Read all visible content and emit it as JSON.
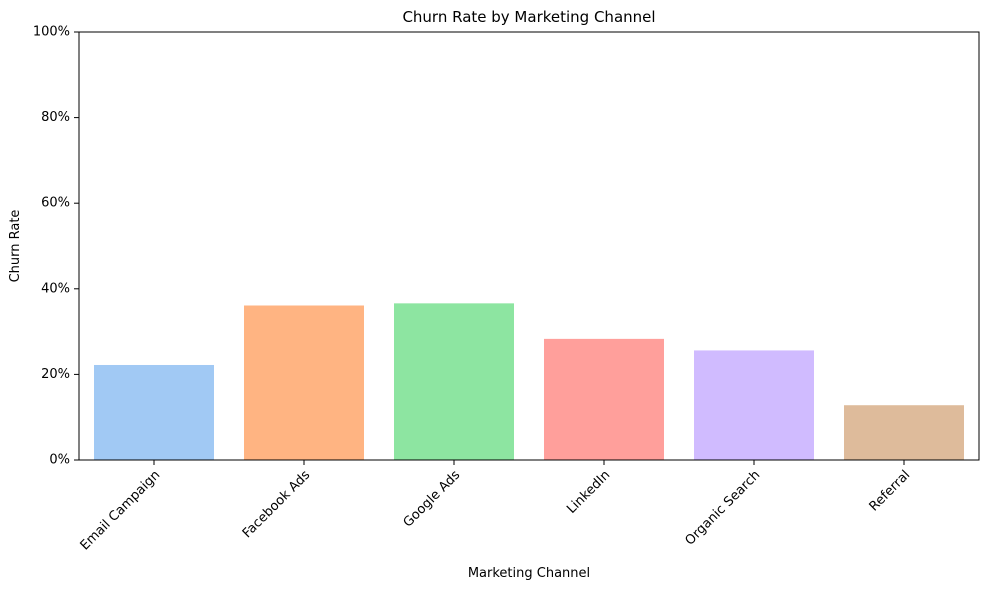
{
  "chart_data": {
    "type": "bar",
    "title": "Churn Rate by Marketing Channel",
    "xlabel": "Marketing Channel",
    "ylabel": "Churn Rate",
    "categories": [
      "Email Campaign",
      "Facebook Ads",
      "Google Ads",
      "LinkedIn",
      "Organic Search",
      "Referral"
    ],
    "values": [
      0.222,
      0.361,
      0.366,
      0.283,
      0.256,
      0.128
    ],
    "colors": [
      "#a1c9f4",
      "#ffb482",
      "#8de5a1",
      "#ff9f9b",
      "#d0bbff",
      "#debb9b"
    ],
    "ylim": [
      0,
      1
    ],
    "yticks": [
      0,
      0.2,
      0.4,
      0.6,
      0.8,
      1.0
    ],
    "ytick_labels": [
      "0%",
      "20%",
      "40%",
      "60%",
      "80%",
      "100%"
    ],
    "grid": false,
    "legend": "none"
  }
}
